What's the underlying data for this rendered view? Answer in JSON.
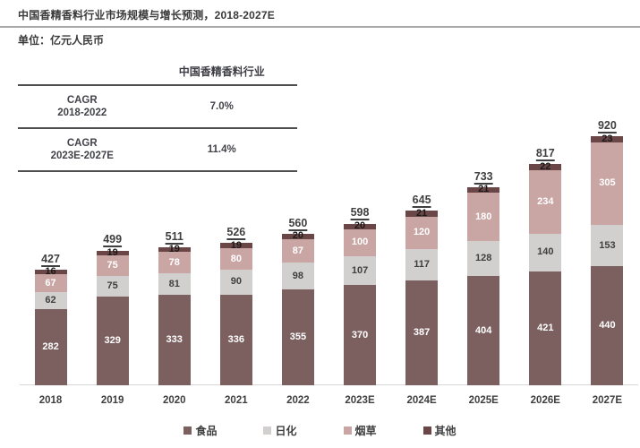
{
  "title": "中国香精香料行业市场规模与增长预测，2018-2027E",
  "unit_label": "单位：亿元人民币",
  "cagr_table": {
    "header": "中国香精香料行业",
    "rows": [
      {
        "label_line1": "CAGR",
        "label_line2": "2018-2022",
        "value": "7.0%"
      },
      {
        "label_line1": "CAGR",
        "label_line2": "2023E-2027E",
        "value": "11.4%"
      }
    ]
  },
  "chart_data": {
    "type": "bar",
    "stacked": true,
    "title": "中国香精香料行业市场规模与增长预测，2018-2027E",
    "ylabel": "亿元人民币",
    "xlabel": "",
    "grid": false,
    "legend_position": "bottom",
    "ylim": [
      0,
      960
    ],
    "categories": [
      "2018",
      "2019",
      "2020",
      "2021",
      "2022",
      "2023E",
      "2024E",
      "2025E",
      "2026E",
      "2027E"
    ],
    "series": [
      {
        "key": "food",
        "name": "食品",
        "color": "#7C5F5F",
        "label_color": "#ffffff",
        "values": [
          282,
          329,
          333,
          336,
          355,
          370,
          387,
          404,
          421,
          440
        ]
      },
      {
        "key": "daily",
        "name": "日化",
        "color": "#D2D0CE",
        "label_color": "#3f3f3f",
        "values": [
          62,
          75,
          81,
          90,
          98,
          107,
          117,
          128,
          140,
          153
        ]
      },
      {
        "key": "tobacco",
        "name": "烟草",
        "color": "#C9A5A3",
        "label_color": "#ffffff",
        "values": [
          67,
          75,
          78,
          80,
          87,
          100,
          120,
          180,
          234,
          305
        ]
      },
      {
        "key": "other",
        "name": "其他",
        "color": "#6B4647",
        "label_color": "#1a1a1a",
        "values": [
          16,
          19,
          19,
          19,
          20,
          20,
          21,
          21,
          22,
          23
        ]
      }
    ],
    "totals": [
      427,
      499,
      511,
      526,
      560,
      598,
      645,
      733,
      817,
      920
    ]
  }
}
